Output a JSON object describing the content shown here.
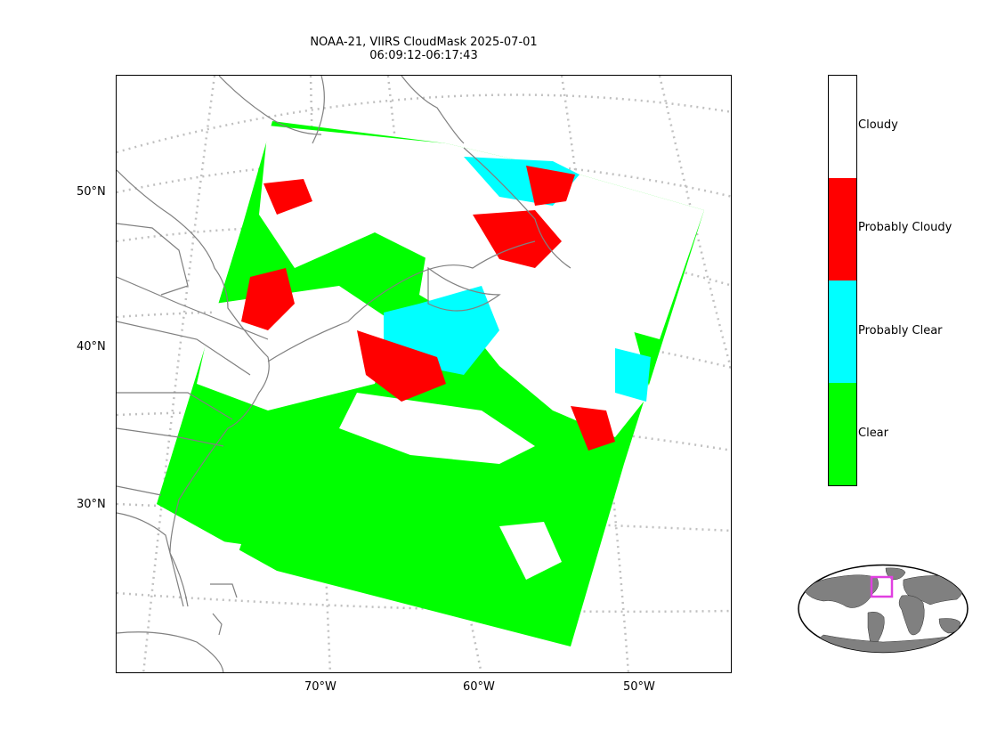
{
  "title": {
    "line1": "NOAA-21, VIIRS CloudMask 2025-07-01",
    "line2": "06:09:12-06:17:43"
  },
  "map": {
    "lat_labels": [
      "50°N",
      "40°N",
      "30°N"
    ],
    "lon_labels": [
      "70°W",
      "60°W",
      "50°W"
    ],
    "coastline_color": "#808080",
    "graticule_color": "#c0c0c0"
  },
  "legend": {
    "categories": [
      {
        "label": "Cloudy",
        "color": "#ffffff"
      },
      {
        "label": "Probably Cloudy",
        "color": "#ff0000"
      },
      {
        "label": "Probably Clear",
        "color": "#00ffff"
      },
      {
        "label": "Clear",
        "color": "#00ff00"
      }
    ]
  },
  "inset": {
    "land_color": "#808080",
    "box_color": "#e040e0"
  }
}
